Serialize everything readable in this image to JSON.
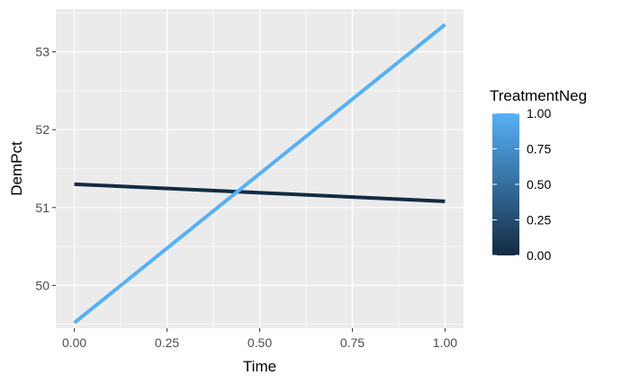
{
  "chart_data": {
    "type": "line",
    "title": "",
    "xlabel": "Time",
    "ylabel": "DemPct",
    "xlim": [
      -0.05,
      1.05
    ],
    "ylim": [
      49.45,
      53.55
    ],
    "x_ticks": [
      0.0,
      0.25,
      0.5,
      0.75,
      1.0
    ],
    "x_tick_labels": [
      "0.00",
      "0.25",
      "0.50",
      "0.75",
      "1.00"
    ],
    "y_ticks": [
      50,
      51,
      52,
      53
    ],
    "y_tick_labels": [
      "50",
      "51",
      "52",
      "53"
    ],
    "grid": true,
    "series": [
      {
        "name": "TreatmentNeg = 0",
        "treatment": 0,
        "color": "#132b43",
        "x": [
          0,
          1
        ],
        "y": [
          51.3,
          51.08
        ]
      },
      {
        "name": "TreatmentNeg = 1",
        "treatment": 1,
        "color": "#56b1f7",
        "x": [
          0,
          1
        ],
        "y": [
          49.52,
          53.35
        ]
      }
    ],
    "legend": {
      "title": "TreatmentNeg",
      "position": "right",
      "gradient": [
        "#132b43",
        "#56b1f7"
      ],
      "ticks": [
        0.0,
        0.25,
        0.5,
        0.75,
        1.0
      ],
      "tick_labels": [
        "0.00",
        "0.25",
        "0.50",
        "0.75",
        "1.00"
      ]
    }
  }
}
